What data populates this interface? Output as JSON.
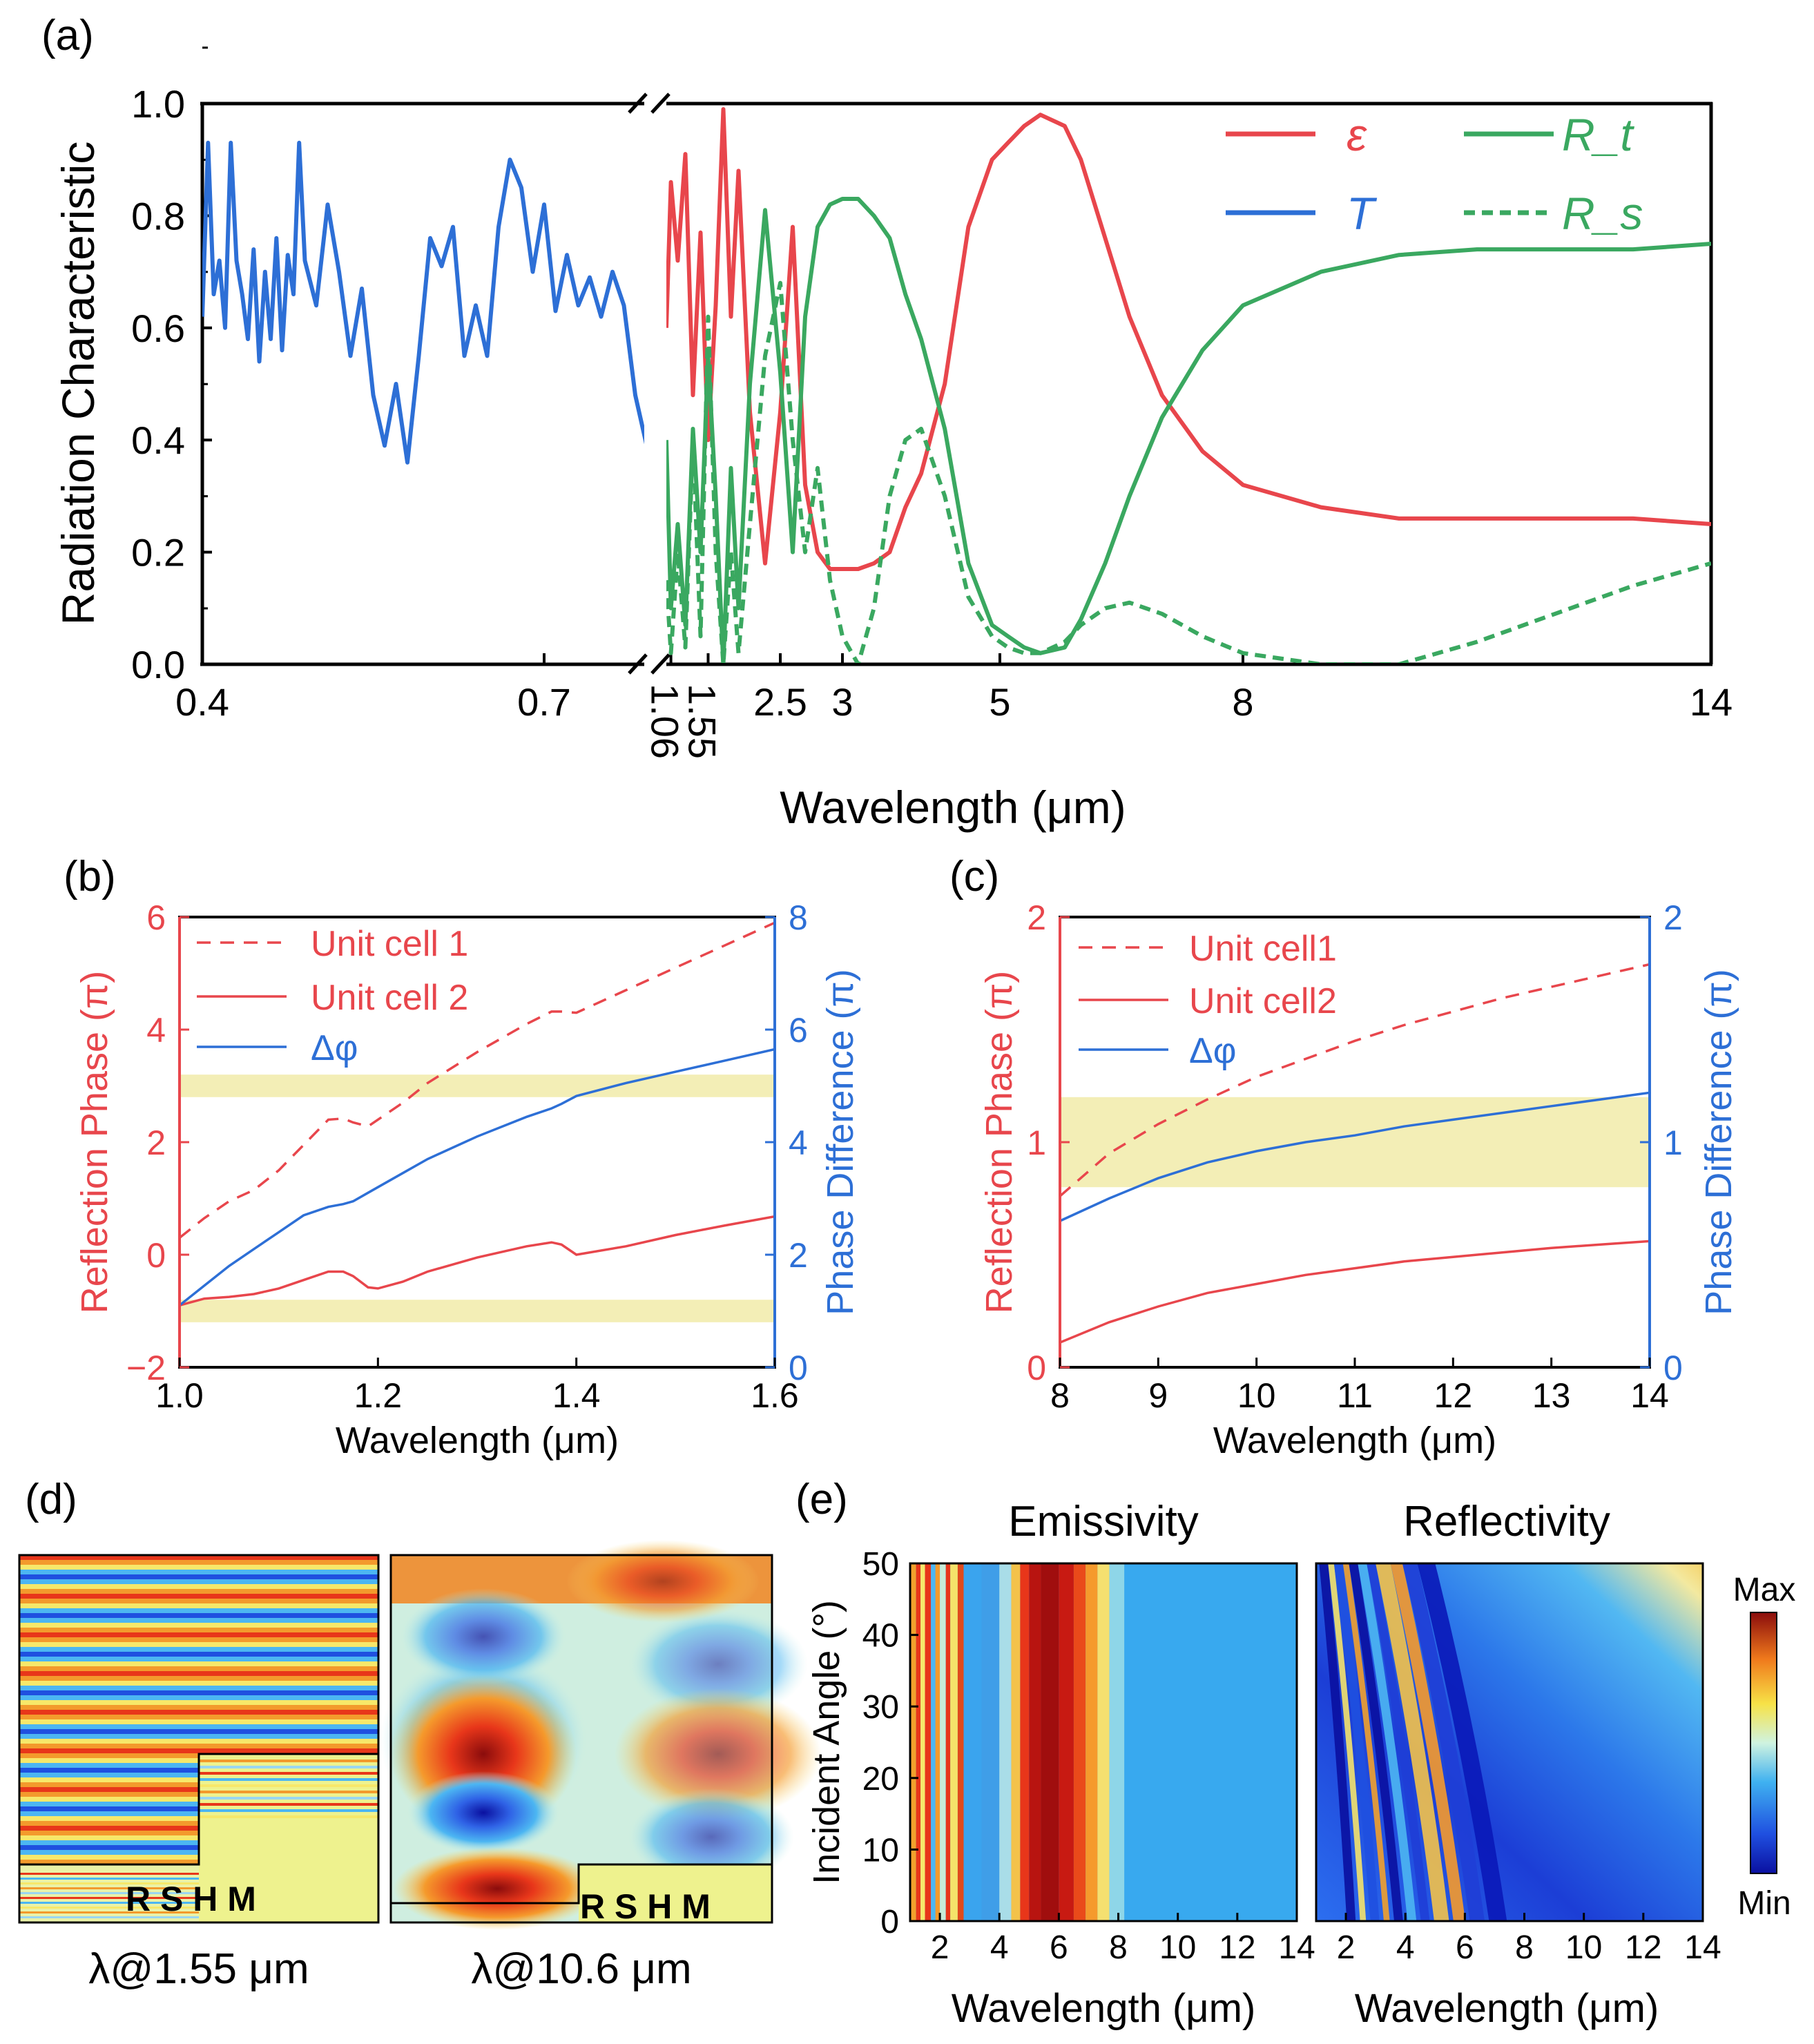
{
  "colors": {
    "red": "#e8464c",
    "blue": "#2d6fd6",
    "green": "#3aa860",
    "band": "#f3eeb6",
    "axis": "#000000"
  },
  "panels": {
    "a": {
      "label": "(a)"
    },
    "b": {
      "label": "(b)"
    },
    "c": {
      "label": "(c)"
    },
    "d": {
      "label": "(d)",
      "left_caption": "λ@1.55 μm",
      "right_caption": "λ@10.6 μm",
      "layer_labels": "R S H M"
    },
    "e": {
      "label": "(e)",
      "left_title": "Emissivity",
      "right_title": "Reflectivity",
      "colorbar_max": "Max",
      "colorbar_min": "Min"
    }
  },
  "chart_data": [
    {
      "panel": "a",
      "type": "line",
      "xlabel": "Wavelength (μm)",
      "ylabel": "Radiation Characteristic",
      "ylim": [
        0,
        1
      ],
      "y_ticks": [
        "0.0",
        "0.2",
        "0.4",
        "0.6",
        "0.8",
        "1.0"
      ],
      "axis_break": true,
      "x_segments": [
        {
          "range": [
            0.4,
            0.8
          ],
          "ticks": [
            "0.4",
            "0.7"
          ]
        },
        {
          "range": [
            1.0,
            14
          ],
          "ticks": [
            "1.06",
            "1.55",
            "2.5",
            "3",
            "5",
            "8",
            "14"
          ]
        }
      ],
      "legend": [
        "ε",
        "T",
        "R_t",
        "R_s"
      ],
      "legend_placement": "top-right",
      "series": [
        {
          "name": "T",
          "style": "solid",
          "color": "blue",
          "x": [
            0.4,
            0.405,
            0.41,
            0.415,
            0.42,
            0.425,
            0.43,
            0.435,
            0.44,
            0.445,
            0.45,
            0.455,
            0.46,
            0.465,
            0.47,
            0.475,
            0.48,
            0.485,
            0.49,
            0.5,
            0.51,
            0.52,
            0.53,
            0.54,
            0.55,
            0.56,
            0.57,
            0.58,
            0.59,
            0.6,
            0.61,
            0.62,
            0.63,
            0.64,
            0.65,
            0.66,
            0.67,
            0.68,
            0.69,
            0.7,
            0.71,
            0.72,
            0.73,
            0.74,
            0.75,
            0.76,
            0.77,
            0.78,
            0.79,
            0.8
          ],
          "values": [
            0.62,
            0.93,
            0.66,
            0.72,
            0.6,
            0.93,
            0.72,
            0.66,
            0.58,
            0.74,
            0.54,
            0.7,
            0.58,
            0.76,
            0.56,
            0.73,
            0.66,
            0.93,
            0.72,
            0.64,
            0.82,
            0.7,
            0.55,
            0.67,
            0.48,
            0.39,
            0.5,
            0.36,
            0.55,
            0.76,
            0.71,
            0.78,
            0.55,
            0.64,
            0.55,
            0.78,
            0.9,
            0.85,
            0.7,
            0.82,
            0.63,
            0.73,
            0.64,
            0.69,
            0.62,
            0.7,
            0.64,
            0.48,
            0.39,
            0.44
          ]
        },
        {
          "name": "ε",
          "style": "solid",
          "color": "red",
          "x": [
            1.0,
            1.06,
            1.15,
            1.25,
            1.35,
            1.45,
            1.55,
            1.65,
            1.75,
            1.85,
            1.95,
            2.1,
            2.3,
            2.5,
            2.6,
            2.7,
            2.8,
            2.9,
            3.0,
            3.2,
            3.4,
            3.6,
            3.8,
            4.0,
            4.3,
            4.6,
            4.9,
            5.1,
            5.3,
            5.5,
            5.8,
            6.0,
            6.3,
            6.6,
            7.0,
            7.5,
            8.0,
            9.0,
            10.0,
            11.0,
            12.0,
            13.0,
            14.0
          ],
          "values": [
            0.6,
            0.86,
            0.72,
            0.91,
            0.48,
            0.77,
            0.4,
            0.64,
            0.99,
            0.62,
            0.88,
            0.45,
            0.18,
            0.45,
            0.78,
            0.32,
            0.2,
            0.17,
            0.17,
            0.17,
            0.18,
            0.2,
            0.28,
            0.34,
            0.5,
            0.78,
            0.9,
            0.93,
            0.96,
            0.98,
            0.96,
            0.9,
            0.76,
            0.62,
            0.48,
            0.38,
            0.32,
            0.28,
            0.26,
            0.26,
            0.26,
            0.26,
            0.25
          ]
        },
        {
          "name": "R_t",
          "style": "solid",
          "color": "green",
          "x": [
            1.0,
            1.06,
            1.15,
            1.25,
            1.35,
            1.45,
            1.55,
            1.65,
            1.75,
            1.85,
            1.95,
            2.1,
            2.3,
            2.5,
            2.6,
            2.7,
            2.8,
            2.9,
            3.0,
            3.2,
            3.4,
            3.6,
            3.8,
            4.0,
            4.3,
            4.6,
            4.9,
            5.1,
            5.3,
            5.5,
            5.8,
            6.0,
            6.3,
            6.6,
            7.0,
            7.5,
            8.0,
            9.0,
            10.0,
            11.0,
            12.0,
            13.0,
            14.0
          ],
          "values": [
            0.4,
            0.1,
            0.25,
            0.07,
            0.42,
            0.2,
            0.55,
            0.3,
            0.0,
            0.35,
            0.1,
            0.5,
            0.81,
            0.52,
            0.2,
            0.62,
            0.78,
            0.82,
            0.83,
            0.83,
            0.8,
            0.76,
            0.66,
            0.58,
            0.42,
            0.18,
            0.07,
            0.05,
            0.03,
            0.02,
            0.03,
            0.08,
            0.18,
            0.3,
            0.44,
            0.56,
            0.64,
            0.7,
            0.73,
            0.74,
            0.74,
            0.74,
            0.75
          ]
        },
        {
          "name": "R_s",
          "style": "dashed",
          "color": "green",
          "x": [
            1.0,
            1.06,
            1.15,
            1.25,
            1.35,
            1.45,
            1.55,
            1.65,
            1.75,
            1.85,
            1.95,
            2.1,
            2.3,
            2.5,
            2.6,
            2.7,
            2.8,
            2.9,
            3.0,
            3.2,
            3.4,
            3.6,
            3.8,
            4.0,
            4.3,
            4.6,
            4.9,
            5.1,
            5.3,
            5.5,
            5.8,
            6.0,
            6.3,
            6.6,
            7.0,
            7.5,
            8.0,
            9.0,
            10.0,
            11.0,
            12.0,
            13.0,
            14.0
          ],
          "values": [
            0.15,
            0.02,
            0.2,
            0.03,
            0.4,
            0.05,
            0.62,
            0.2,
            0.0,
            0.2,
            0.02,
            0.25,
            0.55,
            0.68,
            0.4,
            0.2,
            0.35,
            0.15,
            0.05,
            0.0,
            0.1,
            0.3,
            0.4,
            0.42,
            0.3,
            0.12,
            0.05,
            0.03,
            0.02,
            0.02,
            0.04,
            0.07,
            0.1,
            0.11,
            0.09,
            0.05,
            0.02,
            0.0,
            0.0,
            0.04,
            0.09,
            0.14,
            0.18
          ]
        }
      ]
    },
    {
      "panel": "b",
      "type": "line",
      "xlabel": "Wavelength (μm)",
      "ylabel": "Reflection Phase (π)",
      "ylabel_right": "Phase Difference (π)",
      "xlim": [
        1.0,
        1.6
      ],
      "ylim": [
        -2,
        6
      ],
      "ylim_right": [
        0,
        8
      ],
      "x_ticks": [
        "1.0",
        "1.2",
        "1.4",
        "1.6"
      ],
      "y_ticks": [
        "−2",
        "0",
        "2",
        "4",
        "6"
      ],
      "y_ticks_right": [
        "0",
        "2",
        "4",
        "6",
        "8"
      ],
      "bands": [
        [
          4.8,
          5.2
        ],
        [
          0.8,
          1.2
        ]
      ],
      "legend": [
        "Unit cell 1",
        "Unit cell 2",
        "Δφ"
      ],
      "legend_placement": "top-left",
      "x": [
        1.0,
        1.025,
        1.05,
        1.075,
        1.1,
        1.125,
        1.15,
        1.165,
        1.175,
        1.19,
        1.2,
        1.225,
        1.25,
        1.3,
        1.35,
        1.375,
        1.385,
        1.4,
        1.45,
        1.5,
        1.55,
        1.6
      ],
      "series": [
        {
          "name": "Unit cell 1",
          "style": "dashed",
          "color": "red",
          "axis": "left",
          "values": [
            0.3,
            0.65,
            0.95,
            1.15,
            1.5,
            1.95,
            2.4,
            2.42,
            2.35,
            2.28,
            2.4,
            2.7,
            3.05,
            3.6,
            4.1,
            4.32,
            4.32,
            4.3,
            4.7,
            5.1,
            5.5,
            5.9
          ]
        },
        {
          "name": "Unit cell 2",
          "style": "solid",
          "color": "red",
          "axis": "left",
          "values": [
            -0.9,
            -0.78,
            -0.75,
            -0.7,
            -0.6,
            -0.45,
            -0.3,
            -0.3,
            -0.38,
            -0.58,
            -0.6,
            -0.48,
            -0.3,
            -0.05,
            0.15,
            0.22,
            0.18,
            0.0,
            0.15,
            0.35,
            0.52,
            0.68
          ]
        },
        {
          "name": "Δφ",
          "style": "solid",
          "color": "blue",
          "axis": "right",
          "values": [
            1.1,
            1.45,
            1.8,
            2.1,
            2.4,
            2.7,
            2.85,
            2.9,
            2.95,
            3.1,
            3.2,
            3.45,
            3.7,
            4.1,
            4.45,
            4.6,
            4.68,
            4.82,
            5.05,
            5.25,
            5.45,
            5.65
          ]
        }
      ]
    },
    {
      "panel": "c",
      "type": "line",
      "xlabel": "Wavelength (μm)",
      "ylabel": "Reflection Phase (π)",
      "ylabel_right": "Phase Difference (π)",
      "xlim": [
        8,
        14
      ],
      "ylim": [
        0,
        2
      ],
      "ylim_right": [
        0,
        2
      ],
      "x_ticks": [
        "8",
        "9",
        "10",
        "11",
        "12",
        "13",
        "14"
      ],
      "y_ticks": [
        "0",
        "1",
        "2"
      ],
      "y_ticks_right": [
        "0",
        "1",
        "2"
      ],
      "bands": [
        [
          0.8,
          1.2
        ]
      ],
      "legend": [
        "Unit cell1",
        "Unit cell2",
        "Δφ"
      ],
      "legend_placement": "top-left",
      "x": [
        8,
        8.5,
        9,
        9.5,
        10,
        10.5,
        11,
        11.5,
        12,
        12.5,
        13,
        13.5,
        14
      ],
      "series": [
        {
          "name": "Unit cell1",
          "style": "dashed",
          "color": "red",
          "axis": "left",
          "values": [
            0.76,
            0.95,
            1.08,
            1.19,
            1.29,
            1.37,
            1.45,
            1.52,
            1.58,
            1.64,
            1.69,
            1.74,
            1.79
          ]
        },
        {
          "name": "Unit cell2",
          "style": "solid",
          "color": "red",
          "axis": "left",
          "values": [
            0.11,
            0.2,
            0.27,
            0.33,
            0.37,
            0.41,
            0.44,
            0.47,
            0.49,
            0.51,
            0.53,
            0.545,
            0.56
          ]
        },
        {
          "name": "Δφ",
          "style": "solid",
          "color": "blue",
          "axis": "right",
          "values": [
            0.65,
            0.75,
            0.84,
            0.91,
            0.96,
            1.0,
            1.03,
            1.07,
            1.1,
            1.13,
            1.16,
            1.19,
            1.22
          ]
        }
      ]
    },
    {
      "panel": "e",
      "type": "heatmap",
      "xlabel": "Wavelength (μm)",
      "ylabel": "Incident Angle (°)",
      "xlim": [
        1,
        14
      ],
      "ylim": [
        0,
        50
      ],
      "x_ticks": [
        "2",
        "4",
        "6",
        "8",
        "10",
        "12",
        "14"
      ],
      "y_ticks": [
        "0",
        "10",
        "20",
        "30",
        "40",
        "50"
      ],
      "maps": [
        "Emissivity",
        "Reflectivity"
      ],
      "colorbar": [
        "Min",
        "Max"
      ]
    }
  ]
}
